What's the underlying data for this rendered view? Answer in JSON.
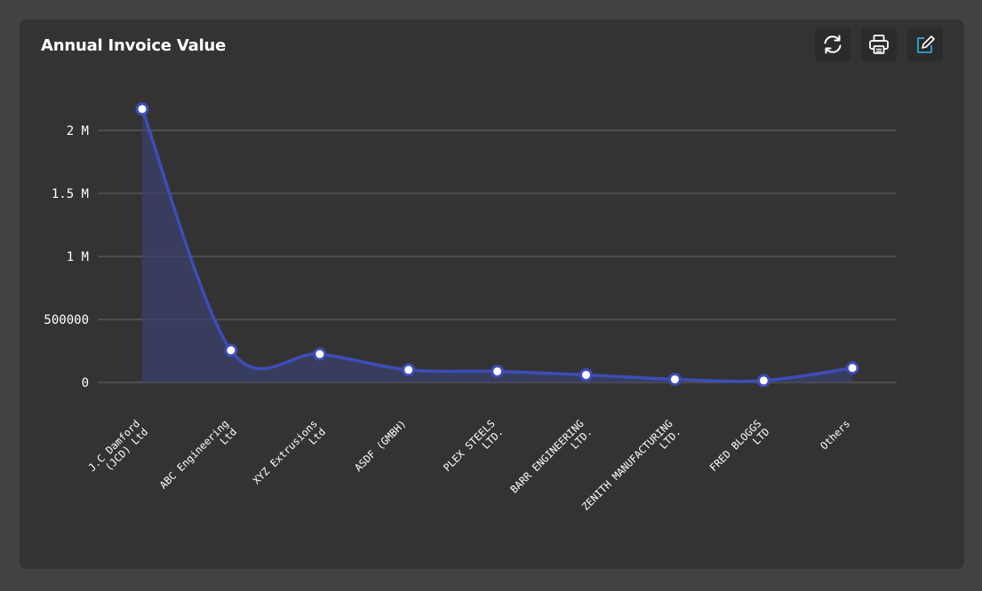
{
  "header": {
    "title": "Annual Invoice Value"
  },
  "toolbar": {
    "buttons": [
      {
        "icon": "refresh-icon"
      },
      {
        "icon": "print-icon"
      },
      {
        "icon": "edit-icon"
      }
    ]
  },
  "colors": {
    "background": "#424242",
    "card": "#333333",
    "series": "#3d4db8",
    "area": "#3b4170",
    "grid": "#6a6a6a",
    "edit_accent": "#2aa8d8"
  },
  "chart_data": {
    "type": "area",
    "categories": [
      [
        "J.C Damford",
        "(JCD) Ltd"
      ],
      [
        "ABC Engineering",
        "Ltd"
      ],
      [
        "XYZ Extrusions",
        "Ltd"
      ],
      [
        "ASDF (GMBH)"
      ],
      [
        "PLEX STEELS",
        "LTD."
      ],
      [
        "BARR ENGINEERING",
        "LTD."
      ],
      [
        "ZENITH MANUFACTURING",
        "LTD."
      ],
      [
        "FRED BLOGGS",
        "LTD"
      ],
      [
        "Others"
      ]
    ],
    "values": [
      2170000,
      255000,
      225000,
      100000,
      88000,
      60000,
      25000,
      15000,
      115000
    ],
    "ylim": [
      0,
      2000000
    ],
    "yticks": [
      {
        "value": 0,
        "label": "0"
      },
      {
        "value": 500000,
        "label": "500000"
      },
      {
        "value": 1000000,
        "label": "1 M"
      },
      {
        "value": 1500000,
        "label": "1.5 M"
      },
      {
        "value": 2000000,
        "label": "2 M"
      }
    ],
    "grid": true,
    "area_fill": "first-segment"
  }
}
